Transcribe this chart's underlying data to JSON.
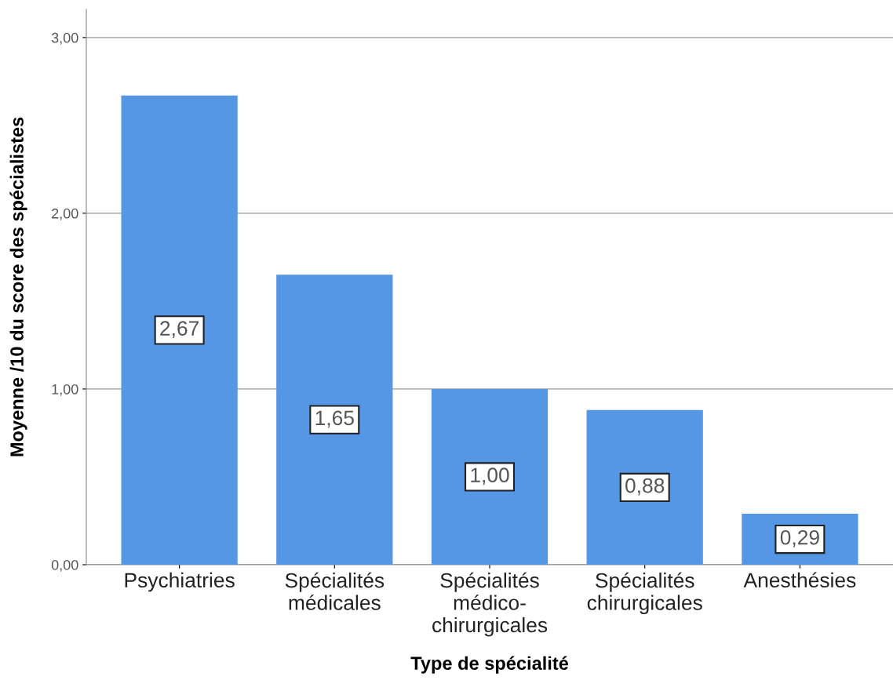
{
  "chart_data": {
    "type": "bar",
    "xlabel": "Type de spécialité",
    "ylabel": "Moyenne /10 du score des spécialistes",
    "categories": [
      "Psychiatries",
      "Spécialités\nmédicales",
      "Spécialités\nmédico-\nchirurgicales",
      "Spécialités\nchirurgicales",
      "Anesthésies"
    ],
    "values": [
      2.67,
      1.65,
      1.0,
      0.88,
      0.29
    ],
    "value_labels": [
      "2,67",
      "1,65",
      "1,00",
      "0,88",
      "0,29"
    ],
    "color": "#5596e5",
    "ylim": [
      0,
      3.16
    ],
    "yticks": [
      {
        "value": 0,
        "label": "0,00"
      },
      {
        "value": 1,
        "label": "1,00"
      },
      {
        "value": 2,
        "label": "2,00"
      },
      {
        "value": 3,
        "label": "3,00"
      }
    ],
    "grid": "y"
  }
}
